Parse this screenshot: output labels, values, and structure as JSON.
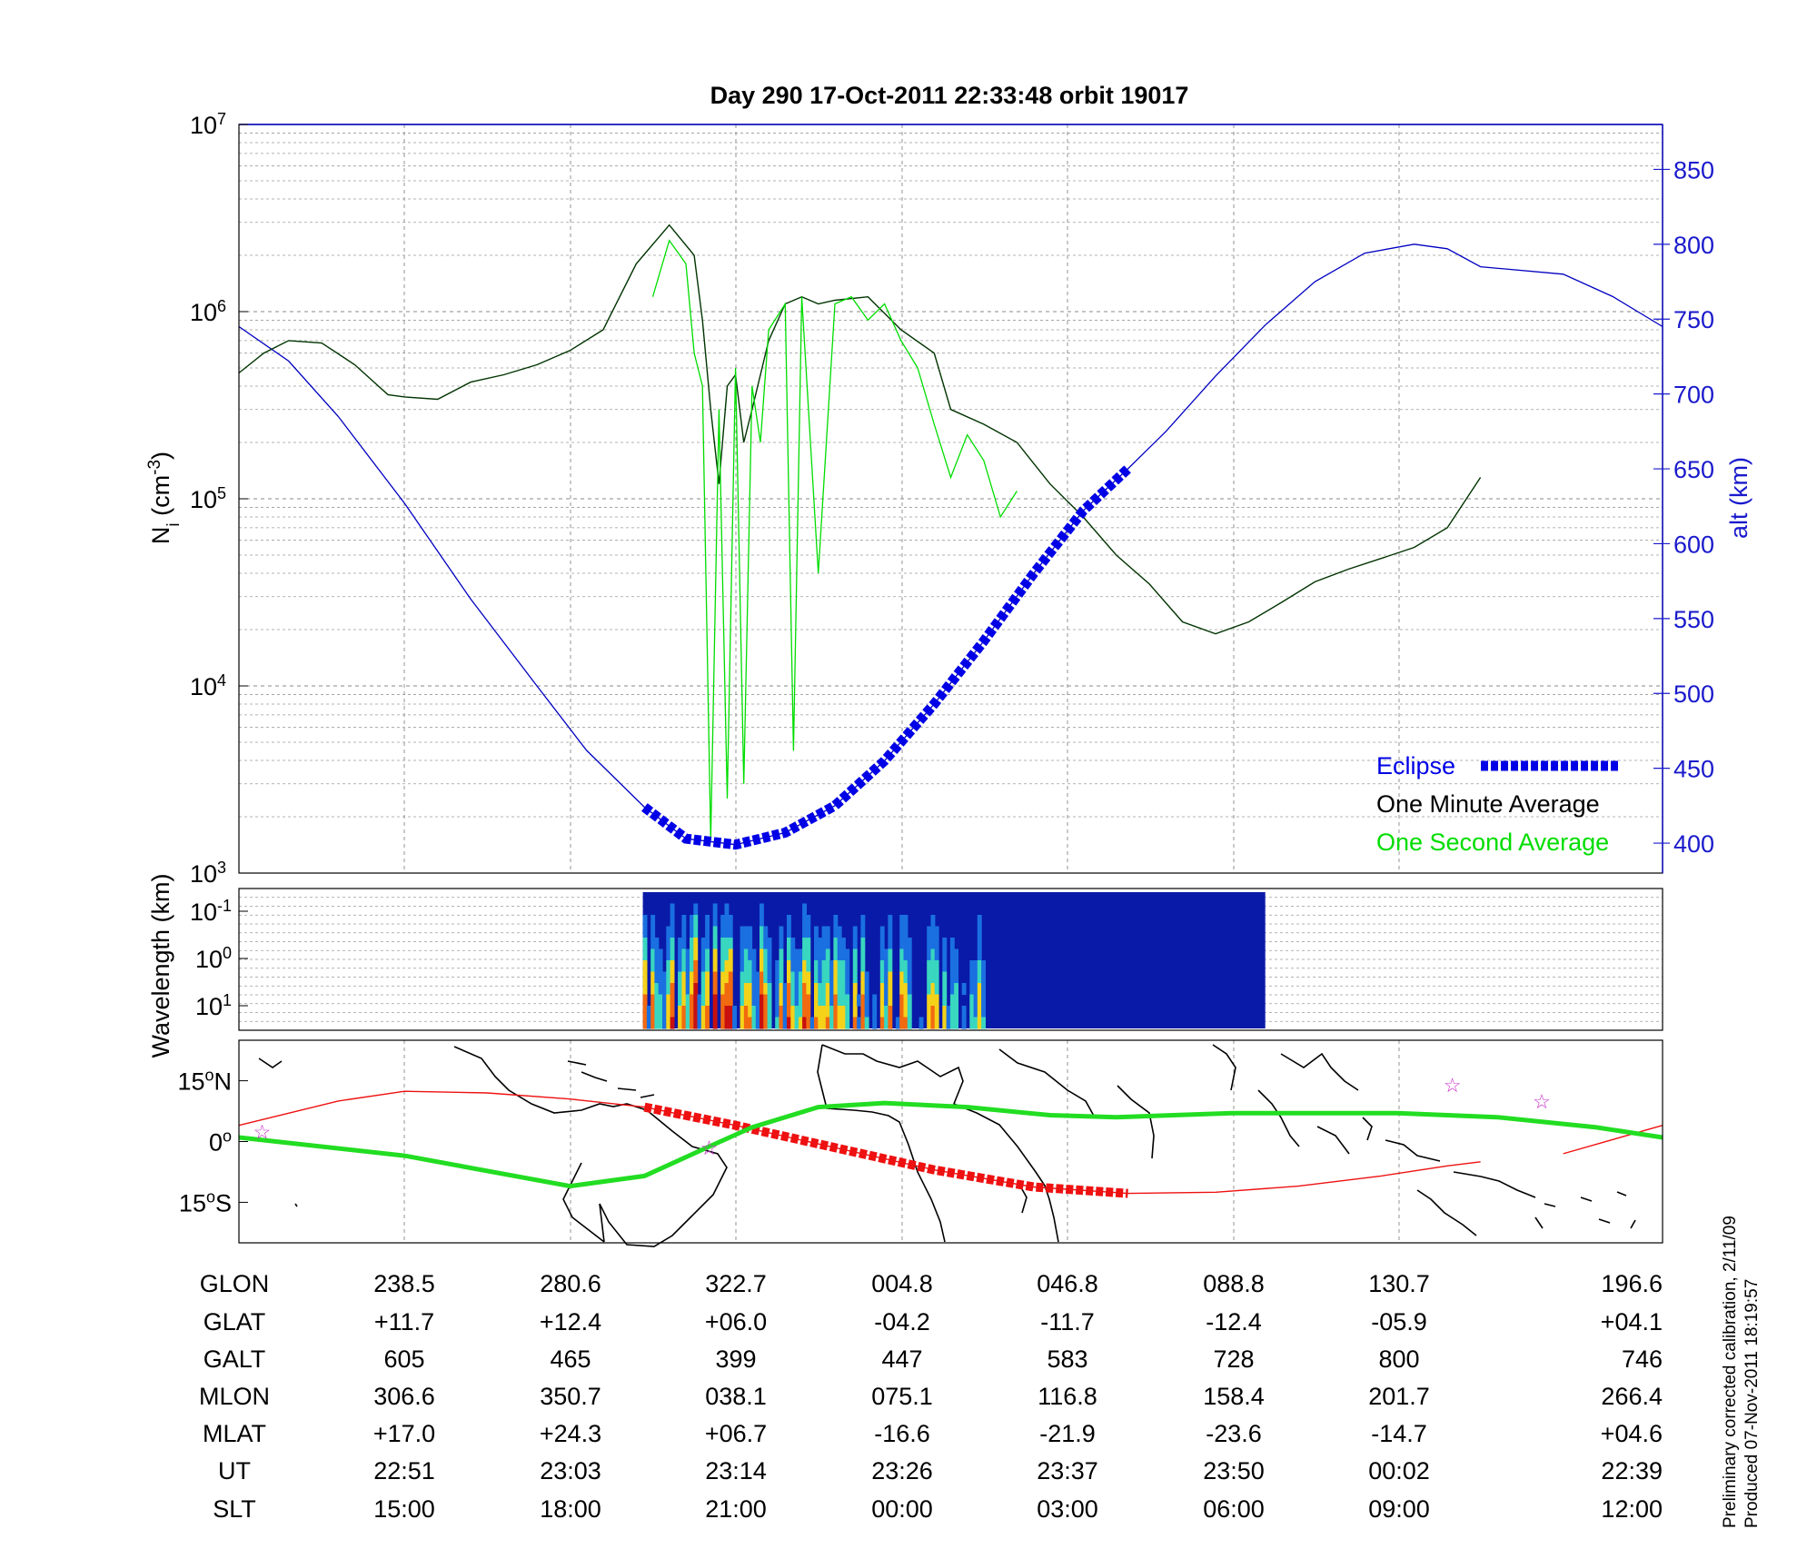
{
  "title": "Day 290  17-Oct-2011 22:33:48   orbit 19017",
  "colors": {
    "alt_line": "#0000c0",
    "one_minute": "#003300",
    "one_second": "#00dd00",
    "eclipse": "#0000e6",
    "track_red": "#ee1111",
    "track_green": "#22dd22",
    "star": "#cc33cc"
  },
  "chart_data": [
    {
      "type": "line",
      "panel": "density",
      "ylabel_main": "N",
      "ylabel_sub": "i",
      "ylabel_unit": " (cm",
      "ylabel_sup": "-3",
      "ylabel_close": ")",
      "y_scale": "log",
      "ylim": [
        1000,
        10000000
      ],
      "y_ticks": [
        {
          "base": "10",
          "exp": "3"
        },
        {
          "base": "10",
          "exp": "4"
        },
        {
          "base": "10",
          "exp": "5"
        },
        {
          "base": "10",
          "exp": "6"
        },
        {
          "base": "10",
          "exp": "7"
        }
      ],
      "y2label": "alt (km)",
      "y2lim": [
        380,
        880
      ],
      "y2_ticks": [
        "400",
        "450",
        "500",
        "550",
        "600",
        "650",
        "700",
        "750",
        "800",
        "850"
      ],
      "xlim": [
        0,
        8.6
      ],
      "legend_position": "bottom-right",
      "series": [
        {
          "name": "Eclipse",
          "kind": "eclipse",
          "x": [
            2.45,
            2.7,
            3.0,
            3.3,
            3.6,
            3.9,
            4.2,
            4.5,
            4.8,
            5.1,
            5.37
          ],
          "y": [
            424,
            403,
            399,
            407,
            425,
            455,
            493,
            535,
            580,
            622,
            650
          ]
        },
        {
          "name": "One Minute Average",
          "kind": "minute",
          "x": [
            0,
            0.15,
            0.3,
            0.5,
            0.7,
            0.9,
            1.0,
            1.2,
            1.4,
            1.6,
            1.8,
            2.0,
            2.2,
            2.4,
            2.6,
            2.75,
            2.8,
            2.85,
            2.9,
            2.95,
            3.0,
            3.05,
            3.1,
            3.2,
            3.3,
            3.4,
            3.5,
            3.6,
            3.8,
            4.0,
            4.2,
            4.3,
            4.5,
            4.7,
            4.9,
            5.1,
            5.3,
            5.5,
            5.7,
            5.9,
            6.1,
            6.3,
            6.5,
            6.7,
            6.9,
            7.1,
            7.3,
            7.5
          ],
          "y": [
            470000,
            600000,
            700000,
            680000,
            520000,
            360000,
            350000,
            340000,
            420000,
            460000,
            520000,
            620000,
            800000,
            1800000,
            2900000,
            2000000,
            900000,
            300000,
            120000,
            400000,
            460000,
            200000,
            300000,
            700000,
            1100000,
            1200000,
            1100000,
            1150000,
            1200000,
            800000,
            600000,
            300000,
            250000,
            200000,
            120000,
            80000,
            50000,
            35000,
            22000,
            19000,
            22000,
            28000,
            36000,
            42000,
            48000,
            55000,
            70000,
            130000
          ]
        },
        {
          "name": "One Second Average",
          "kind": "second",
          "x": [
            2.5,
            2.6,
            2.7,
            2.75,
            2.8,
            2.85,
            2.9,
            2.95,
            3.0,
            3.05,
            3.1,
            3.15,
            3.2,
            3.3,
            3.35,
            3.4,
            3.5,
            3.6,
            3.7,
            3.8,
            3.9,
            4.0,
            4.1,
            4.2,
            4.3,
            4.4,
            4.5,
            4.6,
            4.7
          ],
          "y": [
            1200000,
            2400000,
            1800000,
            600000,
            400000,
            1500,
            300000,
            2500,
            500000,
            3000,
            400000,
            200000,
            800000,
            1100000,
            4500,
            1200000,
            40000,
            1100000,
            1200000,
            900000,
            1100000,
            700000,
            500000,
            250000,
            130000,
            220000,
            160000,
            80000,
            110000
          ]
        },
        {
          "name": "alt",
          "kind": "alt",
          "x": [
            0,
            0.3,
            0.6,
            1.0,
            1.4,
            1.8,
            2.1,
            2.45,
            2.7,
            3.0,
            3.3,
            3.6,
            3.9,
            4.2,
            4.5,
            4.8,
            5.1,
            5.37,
            5.6,
            5.9,
            6.2,
            6.5,
            6.8,
            7.1,
            7.3,
            7.5,
            8.0,
            8.3,
            8.6
          ],
          "y": [
            745,
            722,
            685,
            627,
            563,
            505,
            462,
            424,
            403,
            399,
            407,
            425,
            455,
            493,
            535,
            580,
            622,
            650,
            675,
            712,
            746,
            775,
            794,
            800,
            797,
            785,
            780,
            765,
            745
          ]
        }
      ]
    },
    {
      "type": "heatmap",
      "panel": "spectrogram",
      "ylabel": "Wavelength (km)",
      "y_ticks": [
        {
          "base": "10",
          "exp": "-1"
        },
        {
          "base": "10",
          "exp": "0"
        },
        {
          "base": "10",
          "exp": "1"
        }
      ],
      "xlim": [
        0,
        8.6
      ],
      "data_x_range": [
        2.44,
        6.2
      ]
    },
    {
      "type": "line",
      "panel": "map",
      "y_ticks": [
        {
          "deg": "15",
          "hem": "N"
        },
        {
          "deg": "0",
          "hem": ""
        },
        {
          "deg": "15",
          "hem": "S"
        }
      ],
      "ylim": [
        -25,
        25
      ],
      "xlim": [
        0,
        8.6
      ]
    }
  ],
  "table": {
    "rows": [
      {
        "label": "GLON",
        "values": [
          "238.5",
          "280.6",
          "322.7",
          "004.8",
          "046.8",
          "088.8",
          "130.7",
          "196.6"
        ]
      },
      {
        "label": "GLAT",
        "values": [
          "+11.7",
          "+12.4",
          "+06.0",
          "-04.2",
          "-11.7",
          "-12.4",
          "-05.9",
          "+04.1"
        ]
      },
      {
        "label": "GALT",
        "values": [
          "605",
          "465",
          "399",
          "447",
          "583",
          "728",
          "800",
          "746"
        ]
      },
      {
        "label": "MLON",
        "values": [
          "306.6",
          "350.7",
          "038.1",
          "075.1",
          "116.8",
          "158.4",
          "201.7",
          "266.4"
        ]
      },
      {
        "label": "MLAT",
        "values": [
          "+17.0",
          "+24.3",
          "+06.7",
          "-16.6",
          "-21.9",
          "-23.6",
          "-14.7",
          "+04.6"
        ]
      },
      {
        "label": "UT",
        "values": [
          "22:51",
          "23:03",
          "23:14",
          "23:26",
          "23:37",
          "23:50",
          "00:02",
          "22:39"
        ]
      },
      {
        "label": "SLT",
        "values": [
          "15:00",
          "18:00",
          "21:00",
          "00:00",
          "03:00",
          "06:00",
          "09:00",
          "12:00"
        ]
      }
    ]
  },
  "notes": {
    "line1": "Preliminary corrected calibration, 2/11/09",
    "line2": "Produced 07-Nov-2011 18:19:57"
  }
}
